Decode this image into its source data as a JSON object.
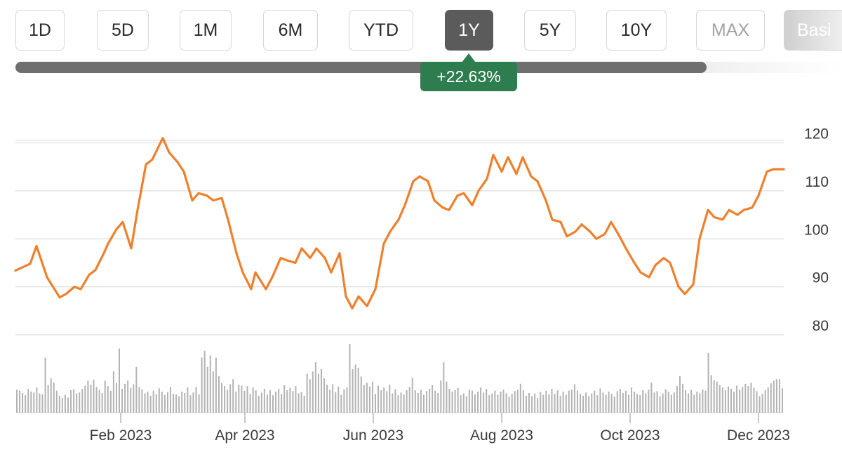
{
  "range_selector": {
    "buttons": [
      {
        "label": "1D"
      },
      {
        "label": "5D"
      },
      {
        "label": "1M"
      },
      {
        "label": "6M"
      },
      {
        "label": "YTD"
      },
      {
        "label": "1Y"
      },
      {
        "label": "5Y"
      },
      {
        "label": "10Y"
      },
      {
        "label": "MAX"
      },
      {
        "label": "Basi"
      }
    ],
    "active": "1Y"
  },
  "change_badge": {
    "text": "+22.63%",
    "color": "#2e7d4f"
  },
  "colors": {
    "line": "#f07f2c",
    "volume": "#b3b3b3",
    "grid": "#dedede",
    "active_button": "#5b5b5b"
  },
  "chart_data": {
    "type": "line",
    "x_range": [
      "2022-12-13",
      "2023-12-13"
    ],
    "ylim": [
      80,
      123
    ],
    "y_ticks": [
      80,
      90,
      100,
      110,
      120
    ],
    "x_tick_labels": [
      "Feb 2023",
      "Apr 2023",
      "Jun 2023",
      "Aug 2023",
      "Oct 2023",
      "Dec 2023"
    ],
    "x_tick_dates": [
      "2023-02-01",
      "2023-04-01",
      "2023-06-01",
      "2023-08-01",
      "2023-10-01",
      "2023-12-01"
    ],
    "grid": true,
    "series": [
      {
        "points": [
          [
            "2022-12-13",
            93.4
          ],
          [
            "2022-12-20",
            94.8
          ],
          [
            "2022-12-23",
            98.5
          ],
          [
            "2022-12-28",
            92.0
          ],
          [
            "2023-01-03",
            87.8
          ],
          [
            "2023-01-06",
            88.5
          ],
          [
            "2023-01-10",
            90.0
          ],
          [
            "2023-01-13",
            89.5
          ],
          [
            "2023-01-17",
            92.5
          ],
          [
            "2023-01-20",
            93.5
          ],
          [
            "2023-01-24",
            97.0
          ],
          [
            "2023-01-26",
            99.0
          ],
          [
            "2023-01-30",
            102.0
          ],
          [
            "2023-02-02",
            103.5
          ],
          [
            "2023-02-06",
            98.0
          ],
          [
            "2023-02-09",
            106.0
          ],
          [
            "2023-02-13",
            115.5
          ],
          [
            "2023-02-16",
            116.5
          ],
          [
            "2023-02-21",
            121.0
          ],
          [
            "2023-02-24",
            118.0
          ],
          [
            "2023-02-28",
            116.0
          ],
          [
            "2023-03-03",
            114.0
          ],
          [
            "2023-03-07",
            108.0
          ],
          [
            "2023-03-10",
            109.5
          ],
          [
            "2023-03-14",
            109.0
          ],
          [
            "2023-03-17",
            108.0
          ],
          [
            "2023-03-21",
            108.5
          ],
          [
            "2023-03-24",
            104.0
          ],
          [
            "2023-03-28",
            97.0
          ],
          [
            "2023-03-31",
            93.0
          ],
          [
            "2023-04-04",
            89.5
          ],
          [
            "2023-04-06",
            93.0
          ],
          [
            "2023-04-11",
            89.5
          ],
          [
            "2023-04-14",
            92.0
          ],
          [
            "2023-04-18",
            96.0
          ],
          [
            "2023-04-21",
            95.5
          ],
          [
            "2023-04-25",
            95.0
          ],
          [
            "2023-04-28",
            98.0
          ],
          [
            "2023-05-02",
            96.0
          ],
          [
            "2023-05-05",
            98.0
          ],
          [
            "2023-05-09",
            96.0
          ],
          [
            "2023-05-12",
            93.0
          ],
          [
            "2023-05-16",
            97.0
          ],
          [
            "2023-05-19",
            88.0
          ],
          [
            "2023-05-22",
            85.5
          ],
          [
            "2023-05-25",
            88.0
          ],
          [
            "2023-05-29",
            86.0
          ],
          [
            "2023-06-02",
            89.5
          ],
          [
            "2023-06-06",
            99.0
          ],
          [
            "2023-06-09",
            101.5
          ],
          [
            "2023-06-13",
            104.0
          ],
          [
            "2023-06-16",
            107.0
          ],
          [
            "2023-06-20",
            112.0
          ],
          [
            "2023-06-23",
            113.0
          ],
          [
            "2023-06-27",
            112.0
          ],
          [
            "2023-06-30",
            108.0
          ],
          [
            "2023-07-04",
            106.5
          ],
          [
            "2023-07-07",
            106.0
          ],
          [
            "2023-07-11",
            109.0
          ],
          [
            "2023-07-14",
            109.5
          ],
          [
            "2023-07-18",
            107.0
          ],
          [
            "2023-07-21",
            110.0
          ],
          [
            "2023-07-25",
            112.5
          ],
          [
            "2023-07-28",
            117.5
          ],
          [
            "2023-08-01",
            114.0
          ],
          [
            "2023-08-04",
            117.0
          ],
          [
            "2023-08-08",
            113.5
          ],
          [
            "2023-08-11",
            117.0
          ],
          [
            "2023-08-15",
            113.0
          ],
          [
            "2023-08-18",
            112.0
          ],
          [
            "2023-08-22",
            108.0
          ],
          [
            "2023-08-25",
            104.0
          ],
          [
            "2023-08-29",
            103.5
          ],
          [
            "2023-09-01",
            100.5
          ],
          [
            "2023-09-05",
            101.5
          ],
          [
            "2023-09-08",
            103.0
          ],
          [
            "2023-09-12",
            101.5
          ],
          [
            "2023-09-15",
            100.0
          ],
          [
            "2023-09-19",
            101.0
          ],
          [
            "2023-09-22",
            103.5
          ],
          [
            "2023-09-26",
            100.5
          ],
          [
            "2023-09-29",
            98.0
          ],
          [
            "2023-10-03",
            95.0
          ],
          [
            "2023-10-06",
            93.0
          ],
          [
            "2023-10-10",
            92.0
          ],
          [
            "2023-10-13",
            94.5
          ],
          [
            "2023-10-17",
            96.0
          ],
          [
            "2023-10-20",
            95.0
          ],
          [
            "2023-10-24",
            90.0
          ],
          [
            "2023-10-27",
            88.5
          ],
          [
            "2023-10-31",
            90.5
          ],
          [
            "2023-11-03",
            100.0
          ],
          [
            "2023-11-07",
            106.0
          ],
          [
            "2023-11-10",
            104.5
          ],
          [
            "2023-11-14",
            104.0
          ],
          [
            "2023-11-17",
            106.0
          ],
          [
            "2023-11-21",
            105.0
          ],
          [
            "2023-11-24",
            106.0
          ],
          [
            "2023-11-28",
            106.5
          ],
          [
            "2023-12-01",
            109.0
          ],
          [
            "2023-12-05",
            114.0
          ],
          [
            "2023-12-08",
            114.5
          ],
          [
            "2023-12-13",
            114.5
          ]
        ]
      }
    ],
    "volume": [
      5.0,
      4.8,
      4.3,
      3.8,
      5.2,
      4.6,
      4.4,
      5.5,
      4.2,
      4.0,
      12.0,
      6.0,
      7.5,
      6.6,
      4.8,
      3.7,
      3.2,
      3.9,
      3.3,
      4.9,
      5.1,
      4.2,
      4.4,
      5.2,
      5.9,
      7.0,
      6.1,
      7.2,
      5.6,
      5.0,
      4.3,
      7.0,
      5.8,
      4.8,
      9.0,
      6.5,
      14.0,
      5.2,
      6.3,
      7.0,
      5.4,
      6.2,
      10.0,
      5.6,
      5.1,
      4.2,
      4.6,
      3.7,
      4.8,
      4.0,
      5.3,
      4.6,
      3.9,
      4.5,
      5.6,
      4.1,
      4.0,
      3.6,
      4.6,
      4.3,
      5.5,
      3.8,
      4.4,
      5.6,
      4.0,
      12.0,
      13.5,
      10.0,
      12.5,
      9.0,
      12.0,
      8.0,
      6.5,
      5.8,
      5.0,
      6.2,
      7.3,
      4.6,
      6.1,
      5.9,
      4.8,
      5.8,
      4.1,
      5.5,
      4.9,
      3.7,
      4.4,
      5.2,
      4.0,
      4.9,
      3.8,
      4.6,
      5.2,
      4.1,
      6.0,
      4.9,
      5.4,
      4.7,
      5.8,
      4.2,
      4.5,
      3.7,
      8.5,
      7.3,
      9.0,
      11.0,
      8.5,
      9.5,
      7.5,
      6.1,
      5.0,
      6.2,
      4.5,
      5.7,
      3.9,
      5.1,
      5.5,
      15.0,
      9.5,
      10.5,
      9.8,
      7.9,
      6.0,
      6.5,
      5.7,
      6.8,
      4.1,
      5.9,
      4.9,
      5.5,
      4.7,
      6.1,
      4.2,
      5.1,
      3.8,
      4.4,
      4.0,
      4.9,
      5.6,
      7.6,
      4.9,
      4.3,
      5.0,
      3.9,
      4.7,
      5.2,
      6.0,
      4.8,
      4.3,
      7.0,
      11.0,
      6.8,
      5.2,
      4.6,
      4.9,
      5.4,
      3.8,
      4.2,
      3.6,
      5.0,
      4.8,
      4.0,
      4.6,
      5.5,
      4.4,
      5.2,
      3.8,
      4.2,
      4.8,
      3.9,
      4.6,
      5.0,
      4.2,
      3.5,
      4.1,
      4.7,
      5.0,
      6.3,
      4.9,
      3.7,
      4.3,
      3.6,
      4.2,
      3.2,
      4.5,
      3.9,
      4.8,
      4.0,
      5.2,
      4.1,
      4.9,
      3.7,
      4.6,
      3.9,
      4.8,
      5.0,
      6.2,
      4.8,
      4.1,
      3.7,
      4.4,
      3.6,
      4.2,
      4.8,
      3.8,
      5.3,
      4.4,
      3.9,
      4.6,
      4.1,
      3.5,
      4.7,
      5.2,
      4.3,
      4.8,
      3.9,
      5.5,
      4.6,
      4.1,
      3.8,
      4.9,
      4.2,
      5.0,
      6.5,
      4.4,
      4.7,
      3.6,
      4.2,
      5.1,
      4.6,
      3.9,
      4.4,
      5.8,
      8.0,
      6.3,
      4.9,
      4.2,
      5.0,
      3.9,
      4.6,
      4.2,
      5.1,
      4.8,
      13.0,
      8.2,
      7.1,
      6.8,
      6.0,
      5.5,
      4.9,
      5.7,
      5.2,
      4.6,
      5.9,
      5.0,
      5.6,
      6.3,
      5.8,
      6.5,
      5.4,
      4.7,
      3.6,
      4.1,
      4.9,
      5.5,
      6.4,
      7.0,
      7.3,
      7.3,
      5.3
    ]
  }
}
